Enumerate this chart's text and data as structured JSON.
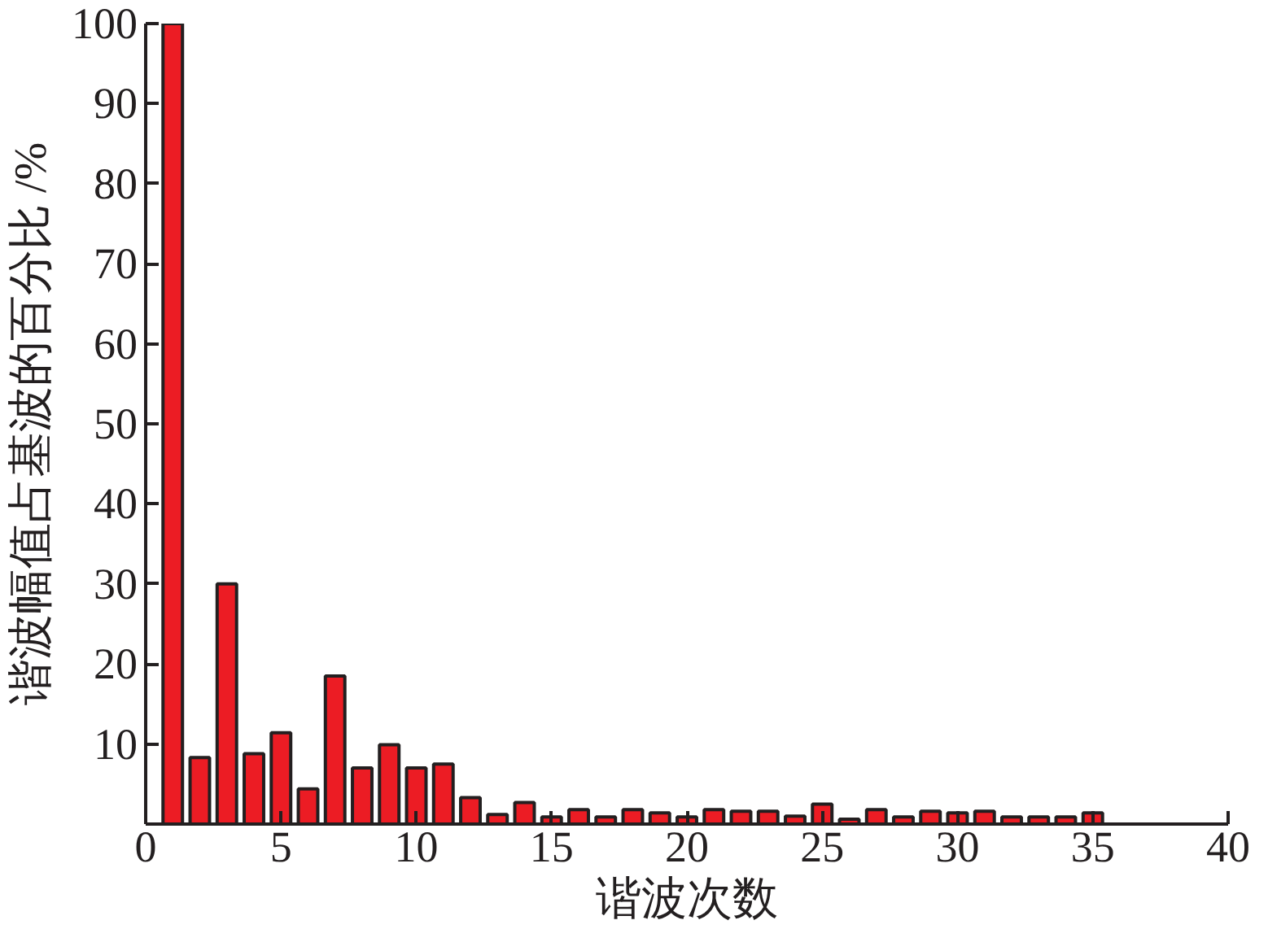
{
  "chart_data": {
    "type": "bar",
    "xlabel": "谐波次数",
    "ylabel": "谐波幅值占基波的百分比 /%",
    "x": [
      1,
      2,
      3,
      4,
      5,
      6,
      7,
      8,
      9,
      10,
      11,
      12,
      13,
      14,
      15,
      16,
      17,
      18,
      19,
      20,
      21,
      22,
      23,
      24,
      25,
      26,
      27,
      28,
      29,
      30,
      31,
      32,
      33,
      34,
      35
    ],
    "values": [
      100,
      8.3,
      30,
      8.8,
      11.4,
      4.4,
      18.5,
      7.0,
      9.9,
      7.0,
      7.5,
      3.3,
      1.2,
      2.7,
      0.9,
      1.8,
      0.9,
      1.8,
      1.4,
      0.9,
      1.8,
      1.6,
      1.6,
      1.0,
      2.5,
      0.6,
      1.8,
      0.9,
      1.6,
      1.4,
      1.6,
      0.9,
      0.9,
      0.9,
      1.4
    ],
    "color": "#ec1c24",
    "xlim": [
      0,
      40
    ],
    "xticks": [
      0,
      5,
      10,
      15,
      20,
      25,
      30,
      35,
      40
    ],
    "ylim": [
      0,
      100
    ],
    "yticks": [
      10,
      20,
      30,
      40,
      50,
      60,
      70,
      80,
      90,
      100
    ],
    "grid": false
  }
}
